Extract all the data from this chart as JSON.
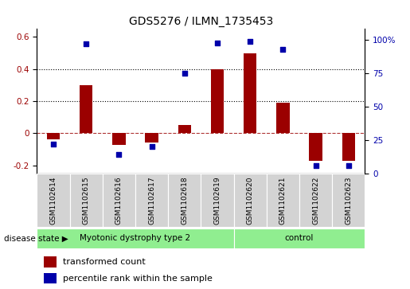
{
  "title": "GDS5276 / ILMN_1735453",
  "samples": [
    "GSM1102614",
    "GSM1102615",
    "GSM1102616",
    "GSM1102617",
    "GSM1102618",
    "GSM1102619",
    "GSM1102620",
    "GSM1102621",
    "GSM1102622",
    "GSM1102623"
  ],
  "transformed_count": [
    -0.04,
    0.3,
    -0.07,
    -0.06,
    0.05,
    0.4,
    0.5,
    0.19,
    -0.17,
    -0.17
  ],
  "percentile_rank": [
    22,
    97,
    14,
    20,
    75,
    98,
    99,
    93,
    6,
    6
  ],
  "disease_groups": [
    {
      "label": "Myotonic dystrophy type 2",
      "start": 0,
      "end": 6,
      "color": "#90EE90"
    },
    {
      "label": "control",
      "start": 6,
      "end": 10,
      "color": "#90EE90"
    }
  ],
  "ylim_left": [
    -0.25,
    0.65
  ],
  "ylim_right": [
    0,
    108.33
  ],
  "yticks_left": [
    -0.2,
    0.0,
    0.2,
    0.4,
    0.6
  ],
  "ytick_labels_left": [
    "-0.2",
    "0",
    "0.2",
    "0.4",
    "0.6"
  ],
  "yticks_right": [
    0,
    25,
    50,
    75,
    100
  ],
  "ytick_labels_right": [
    "0",
    "25",
    "50",
    "75",
    "100%"
  ],
  "bar_color": "#9B0000",
  "dot_color": "#0000AA",
  "dotted_lines": [
    0.2,
    0.4
  ],
  "disease_state_label": "disease state",
  "legend_items": [
    {
      "label": "transformed count",
      "color": "#9B0000"
    },
    {
      "label": "percentile rank within the sample",
      "color": "#0000AA"
    }
  ]
}
